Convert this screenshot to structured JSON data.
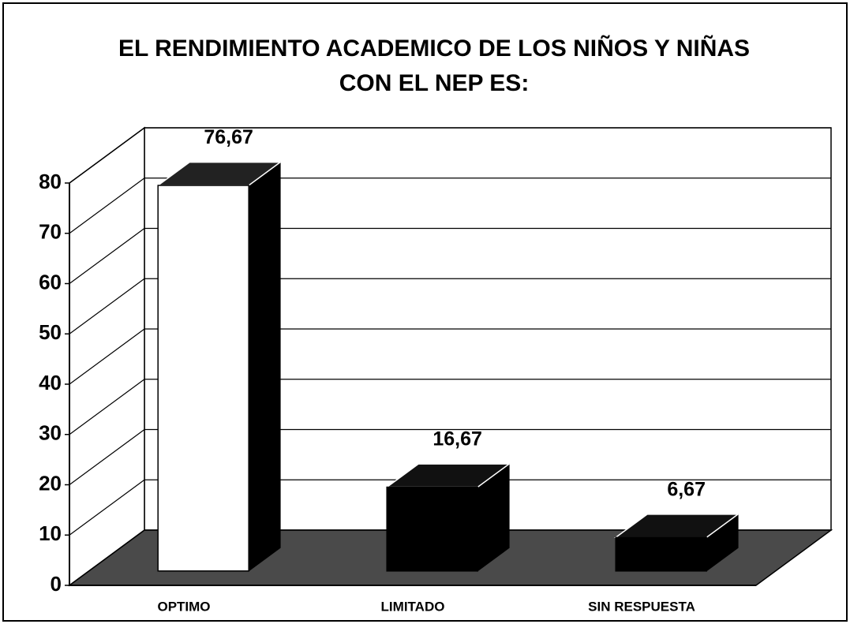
{
  "chart_data": {
    "type": "bar3d",
    "title": "EL RENDIMIENTO ACADEMICO DE LOS NIÑOS Y NIÑAS CON EL NEP ES:",
    "categories": [
      "OPTIMO",
      "LIMITADO",
      "SIN RESPUESTA"
    ],
    "values": [
      76.67,
      16.67,
      6.67
    ],
    "value_labels": [
      "76,67",
      "16,67",
      "6,67"
    ],
    "colors": [
      "#ffffff",
      "#000000",
      "#000000"
    ],
    "ylim": [
      0,
      80
    ],
    "yticks": [
      0,
      10,
      20,
      30,
      40,
      50,
      60,
      70,
      80
    ],
    "grid": true
  }
}
